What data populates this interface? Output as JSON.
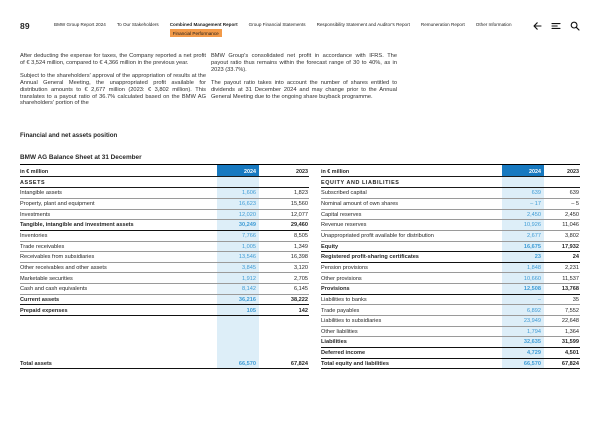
{
  "page": {
    "number": "89"
  },
  "header": {
    "nav": [
      {
        "label": "BMW Group Report 2024"
      },
      {
        "label": "To Our Stakeholders"
      },
      {
        "label": "Combined Management Report",
        "active": true,
        "sub": "Financial Performance"
      },
      {
        "label": "Group Financial Statements"
      },
      {
        "label": "Responsibility Statement and Auditor's Report"
      },
      {
        "label": "Remuneration Report"
      },
      {
        "label": "Other Information"
      }
    ],
    "icons": [
      "back-arrow-icon",
      "menu-icon",
      "search-icon"
    ]
  },
  "intro": {
    "col1": [
      "After deducting the expense for taxes, the Company reported a net profit of € 3,524 million, compared to € 4,366 million in the previous year.",
      "Subject to the shareholders' approval of the appropriation of results at the Annual General Meeting, the unappropriated profit available for distribution amounts to € 2,677 million (2023: € 3,802 million). This translates to a payout ratio of 36.7% calculated based on the BMW AG shareholders' portion of the"
    ],
    "col2": [
      "BMW Group's consolidated net profit in accordance with IFRS. The payout ratio thus remains within the forecast range of 30 to 40%, as in 2023 (33.7%).",
      "The payout ratio takes into account the number of shares entitled to dividends at 31 December 2024 and may change prior to the Annual General Meeting due to the ongoing share buyback programme."
    ]
  },
  "headings": {
    "section": "Financial and net assets position",
    "table_title": "BMW AG Balance Sheet at 31 December"
  },
  "columns": {
    "unit": "in € million",
    "y2024": "2024",
    "y2023": "2023"
  },
  "assets_table": {
    "section_label": "ASSETS",
    "rows": [
      {
        "label": "Intangible assets",
        "y2024": "1,606",
        "y2023": "1,823"
      },
      {
        "label": "Property, plant and equipment",
        "y2024": "16,623",
        "y2023": "15,560"
      },
      {
        "label": "Investments",
        "y2024": "12,020",
        "y2023": "12,077"
      },
      {
        "label": "Tangible, intangible and investment assets",
        "y2024": "30,249",
        "y2023": "29,460",
        "bold": true
      },
      {
        "label": "Inventories",
        "y2024": "7,766",
        "y2023": "8,505"
      },
      {
        "label": "Trade receivables",
        "y2024": "1,005",
        "y2023": "1,349"
      },
      {
        "label": "Receivables from subsidiaries",
        "y2024": "13,546",
        "y2023": "16,398"
      },
      {
        "label": "Other receivables and other assets",
        "y2024": "3,845",
        "y2023": "3,120"
      },
      {
        "label": "Marketable securities",
        "y2024": "1,912",
        "y2023": "2,705"
      },
      {
        "label": "Cash and cash equivalents",
        "y2024": "8,142",
        "y2023": "6,145"
      },
      {
        "label": "Current assets",
        "y2024": "36,216",
        "y2023": "38,222",
        "bold": true
      },
      {
        "label": "Prepaid expenses",
        "y2024": "105",
        "y2023": "142",
        "bold": true
      },
      {
        "spacer": true
      },
      {
        "label": "Total assets",
        "y2024": "66,570",
        "y2023": "67,824",
        "bold": true
      }
    ]
  },
  "equity_table": {
    "section_label": "EQUITY AND LIABILITIES",
    "rows": [
      {
        "label": "Subscribed capital",
        "y2024": "639",
        "y2023": "639"
      },
      {
        "label": "Nominal amount of own shares",
        "y2024": "– 17",
        "y2023": "– 5"
      },
      {
        "label": "Capital reserves",
        "y2024": "2,450",
        "y2023": "2,450"
      },
      {
        "label": "Revenue reserves",
        "y2024": "10,926",
        "y2023": "11,046"
      },
      {
        "label": "Unappropriated profit available for distribution",
        "y2024": "2,677",
        "y2023": "3,802"
      },
      {
        "label": "Equity",
        "y2024": "16,675",
        "y2023": "17,932",
        "bold": true
      },
      {
        "label": "Registered profit-sharing certificates",
        "y2024": "23",
        "y2023": "24",
        "bold": true
      },
      {
        "label": "Pension provisions",
        "y2024": "1,848",
        "y2023": "2,231"
      },
      {
        "label": "Other provisions",
        "y2024": "10,660",
        "y2023": "11,537"
      },
      {
        "label": "Provisions",
        "y2024": "12,508",
        "y2023": "13,768",
        "bold": true
      },
      {
        "label": "Liabilities to banks",
        "y2024": "–",
        "y2023": "35"
      },
      {
        "label": "Trade payables",
        "y2024": "6,892",
        "y2023": "7,552"
      },
      {
        "label": "Liabilities to subsidiaries",
        "y2024": "23,949",
        "y2023": "22,648"
      },
      {
        "label": "Other liabilities",
        "y2024": "1,794",
        "y2023": "1,364"
      },
      {
        "label": "Liabilities",
        "y2024": "32,635",
        "y2023": "31,599",
        "bold": true
      },
      {
        "label": "Deferred income",
        "y2024": "4,729",
        "y2023": "4,501",
        "bold": true
      },
      {
        "label": "Total equity and liabilities",
        "y2024": "66,570",
        "y2023": "67,824",
        "bold": true
      }
    ]
  },
  "colors": {
    "accent_blue": "#1779c0",
    "value_blue": "#3d9bd5",
    "band_blue": "#ddeef8",
    "highlight_orange": "#f29a49"
  }
}
